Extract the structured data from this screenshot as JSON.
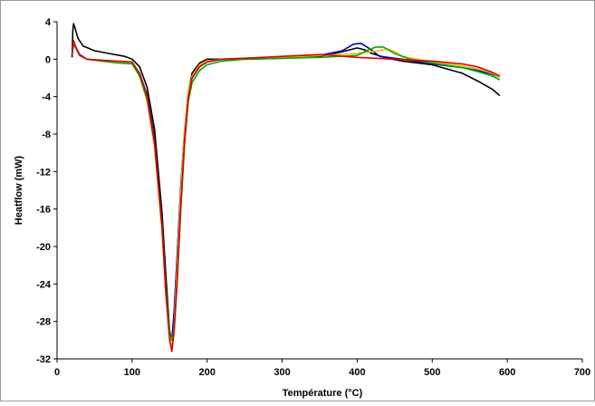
{
  "chart_data": {
    "type": "line",
    "xlabel": "Température (°C)",
    "ylabel": "Heatflow (mW)",
    "xlim": [
      0,
      700
    ],
    "ylim": [
      -32,
      4
    ],
    "xticks": [
      0,
      100,
      200,
      300,
      400,
      500,
      600,
      700
    ],
    "yticks": [
      4,
      0,
      -4,
      -8,
      -12,
      -16,
      -20,
      -24,
      -28,
      -32
    ],
    "grid": false,
    "legend": "none",
    "series": [
      {
        "color": "#000000",
        "x": [
          20,
          21,
          22,
          24,
          28,
          35,
          50,
          70,
          90,
          100,
          110,
          120,
          130,
          140,
          145,
          150,
          153,
          156,
          160,
          165,
          170,
          175,
          180,
          190,
          200,
          220,
          250,
          300,
          350,
          380,
          400,
          410,
          420,
          440,
          460,
          500,
          540,
          560,
          580,
          590
        ],
        "y": [
          0.2,
          3.0,
          3.8,
          3.3,
          2.2,
          1.4,
          0.9,
          0.6,
          0.3,
          0.0,
          -0.8,
          -3.0,
          -7.5,
          -16.5,
          -23.0,
          -29.0,
          -30.0,
          -27.0,
          -21.0,
          -13.5,
          -7.5,
          -3.5,
          -1.5,
          -0.4,
          0.0,
          0.0,
          0.0,
          0.1,
          0.3,
          0.8,
          1.2,
          1.0,
          0.6,
          0.1,
          -0.2,
          -0.6,
          -1.5,
          -2.3,
          -3.2,
          -3.9
        ]
      },
      {
        "color": "#0000cc",
        "x": [
          20,
          22,
          25,
          30,
          40,
          60,
          80,
          100,
          110,
          120,
          130,
          140,
          145,
          150,
          153,
          156,
          160,
          165,
          170,
          175,
          180,
          190,
          200,
          220,
          250,
          300,
          350,
          380,
          395,
          405,
          415,
          430,
          460,
          500,
          540,
          560,
          580,
          590
        ],
        "y": [
          0.5,
          1.6,
          1.3,
          0.5,
          0.0,
          -0.2,
          -0.3,
          -0.4,
          -1.5,
          -3.8,
          -8.5,
          -17.5,
          -24.5,
          -29.5,
          -30.0,
          -27.0,
          -21.0,
          -13.5,
          -7.8,
          -3.8,
          -2.0,
          -0.8,
          -0.3,
          0.0,
          0.1,
          0.2,
          0.4,
          0.9,
          1.6,
          1.7,
          1.2,
          0.3,
          0.0,
          -0.5,
          -0.9,
          -1.2,
          -1.6,
          -1.9
        ]
      },
      {
        "color": "#e8c000",
        "x": [
          20,
          22,
          25,
          30,
          40,
          60,
          80,
          100,
          110,
          120,
          130,
          140,
          145,
          150,
          153,
          156,
          160,
          165,
          170,
          175,
          180,
          190,
          200,
          220,
          250,
          300,
          350,
          400,
          420,
          440,
          450,
          460,
          500,
          540,
          560,
          580,
          590
        ],
        "y": [
          0.5,
          1.8,
          1.2,
          0.4,
          0.0,
          -0.2,
          -0.3,
          -0.4,
          -1.8,
          -4.5,
          -9.5,
          -18.5,
          -25.0,
          -29.5,
          -31.0,
          -28.5,
          -22.0,
          -14.0,
          -7.5,
          -3.5,
          -1.8,
          -0.6,
          -0.2,
          0.0,
          0.1,
          0.2,
          0.4,
          0.6,
          0.8,
          1.1,
          0.8,
          0.3,
          -0.3,
          -0.7,
          -1.0,
          -1.5,
          -1.9
        ]
      },
      {
        "color": "#00aa00",
        "x": [
          20,
          22,
          25,
          30,
          40,
          60,
          80,
          100,
          110,
          120,
          130,
          140,
          145,
          150,
          153,
          156,
          160,
          165,
          170,
          175,
          180,
          190,
          200,
          220,
          250,
          300,
          350,
          400,
          415,
          425,
          435,
          450,
          470,
          500,
          540,
          560,
          580,
          590
        ],
        "y": [
          0.5,
          1.6,
          1.2,
          0.4,
          0.0,
          -0.2,
          -0.4,
          -0.5,
          -1.8,
          -4.2,
          -9.0,
          -18.0,
          -24.5,
          -29.0,
          -30.0,
          -29.0,
          -24.0,
          -16.0,
          -9.0,
          -4.5,
          -2.5,
          -1.2,
          -0.6,
          -0.2,
          0.0,
          0.1,
          0.2,
          0.4,
          1.0,
          1.3,
          1.3,
          0.6,
          0.0,
          -0.4,
          -0.9,
          -1.3,
          -1.8,
          -2.2
        ]
      },
      {
        "color": "#dd0000",
        "x": [
          20,
          22,
          25,
          30,
          40,
          60,
          80,
          100,
          110,
          120,
          130,
          140,
          145,
          150,
          153,
          156,
          160,
          165,
          170,
          175,
          180,
          190,
          200,
          220,
          250,
          300,
          350,
          400,
          450,
          500,
          540,
          560,
          580,
          590
        ],
        "y": [
          0.5,
          2.0,
          1.3,
          0.4,
          0.0,
          -0.1,
          -0.2,
          -0.3,
          -1.5,
          -4.0,
          -9.0,
          -18.0,
          -25.0,
          -30.0,
          -31.2,
          -29.0,
          -23.5,
          -15.5,
          -8.5,
          -4.0,
          -2.0,
          -0.8,
          -0.3,
          0.0,
          0.1,
          0.3,
          0.5,
          0.2,
          0.0,
          -0.2,
          -0.5,
          -0.8,
          -1.4,
          -1.8
        ]
      }
    ]
  }
}
